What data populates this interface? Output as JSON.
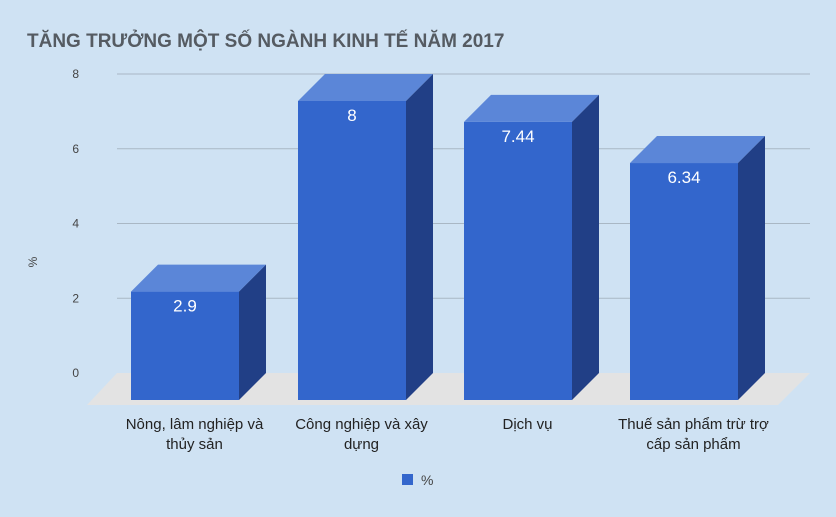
{
  "chart_data": {
    "type": "bar",
    "style": "3d",
    "title": "TĂNG TRƯỞNG MỘT SỐ NGÀNH KINH TẾ NĂM 2017",
    "xlabel": "",
    "ylabel": "%",
    "categories": [
      [
        "Nông, lâm nghiệp và",
        "thủy sản"
      ],
      [
        "Công nghiệp và xây",
        "dựng"
      ],
      [
        "Dịch vụ"
      ],
      [
        "Thuế sản phẩm trừ trợ",
        "cấp sản phẩm"
      ]
    ],
    "series": [
      {
        "name": "%",
        "values": [
          2.9,
          8,
          7.44,
          6.34
        ],
        "labels": [
          "2.9",
          "8",
          "7.44",
          "6.34"
        ]
      }
    ],
    "ylim": [
      0,
      8
    ],
    "yticks": [
      "0",
      "2",
      "4",
      "6",
      "8"
    ],
    "grid": true,
    "legend": "bottom",
    "colors": {
      "front": "#3366cc",
      "top": "#5b86d8",
      "side": "#213f86",
      "floor": "#e3e3e3",
      "grid": "#a9b7c4",
      "background": "#cfe2f3"
    }
  }
}
